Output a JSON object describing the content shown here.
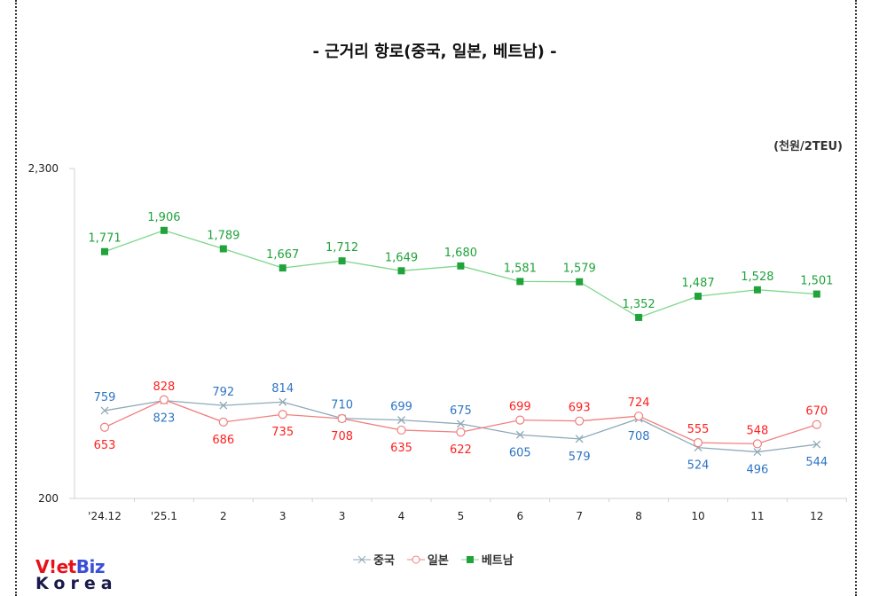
{
  "chart_data": {
    "type": "line",
    "title": "- 근거리 항로(중국, 일본, 베트남) -",
    "unit": "(천원/2TEU)",
    "categories": [
      "'24.12",
      "'25.1",
      "2",
      "3",
      "3",
      "4",
      "5",
      "6",
      "7",
      "8",
      "10",
      "11",
      "12"
    ],
    "ylim": [
      200,
      2300
    ],
    "ytick_labels": [
      "2,300",
      "200"
    ],
    "grid": false,
    "legend_position": "bottom",
    "series": [
      {
        "name": "중국",
        "color": "#8faab8",
        "label_color": "#2e75c5",
        "marker": "x",
        "values": [
          759,
          823,
          792,
          814,
          710,
          699,
          675,
          605,
          579,
          708,
          524,
          496,
          544
        ],
        "labels": [
          "759",
          "823",
          "792",
          "814",
          "710",
          "699",
          "675",
          "605",
          "579",
          "708",
          "524",
          "496",
          "544"
        ]
      },
      {
        "name": "일본",
        "color": "#f08080",
        "label_color": "#ff2020",
        "marker": "circle",
        "values": [
          653,
          828,
          686,
          735,
          708,
          635,
          622,
          699,
          693,
          724,
          555,
          548,
          670
        ],
        "labels": [
          "653",
          "828",
          "686",
          "735",
          "708",
          "635",
          "622",
          "699",
          "693",
          "724",
          "555",
          "548",
          "670"
        ]
      },
      {
        "name": "베트남",
        "color": "#7dd68a",
        "label_color": "#1fa33a",
        "marker": "square",
        "values": [
          1771,
          1906,
          1789,
          1667,
          1712,
          1649,
          1680,
          1581,
          1579,
          1352,
          1487,
          1528,
          1501
        ],
        "labels": [
          "1,771",
          "1,906",
          "1,789",
          "1,667",
          "1,712",
          "1,649",
          "1,680",
          "1,581",
          "1,579",
          "1,352",
          "1,487",
          "1,528",
          "1,501"
        ]
      }
    ]
  },
  "logo": {
    "line1_a": "V",
    "line1_b": "!et",
    "line1_c": "Biz",
    "line2": "Korea"
  }
}
